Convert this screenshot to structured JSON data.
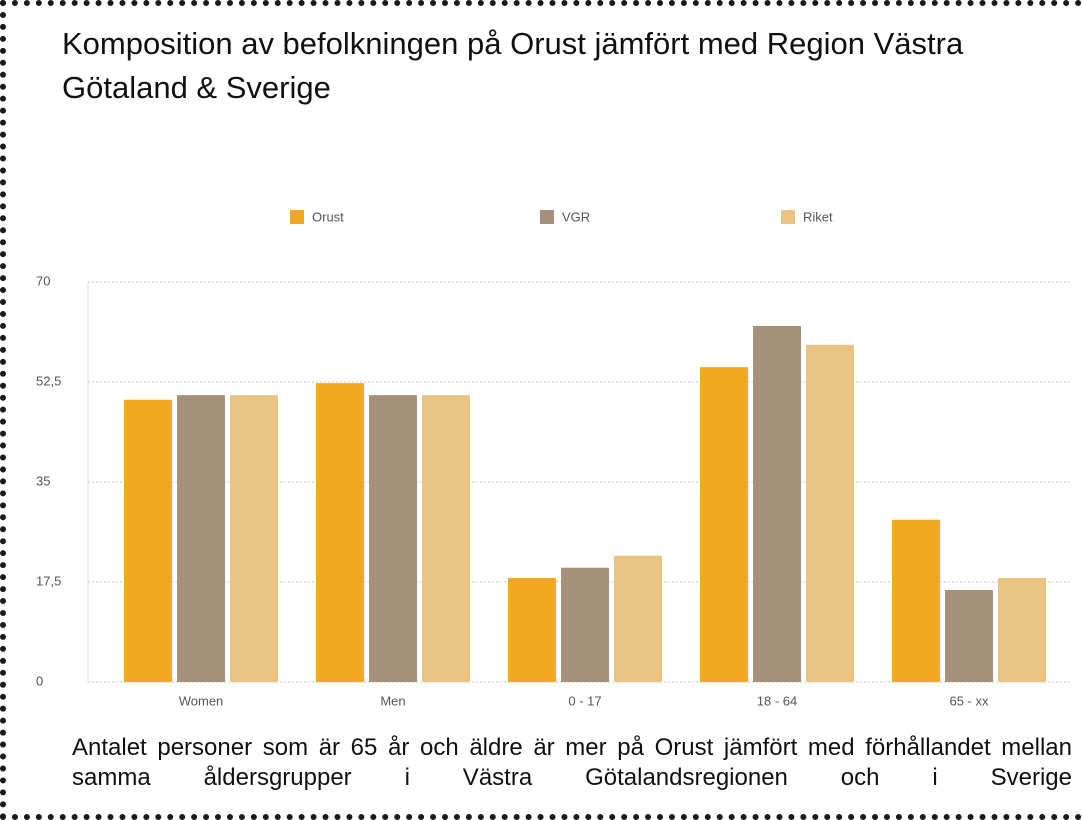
{
  "chart_data": {
    "type": "bar",
    "title": "Komposition av befolkningen på Orust jämfört med Region Västra Götaland & Sverige",
    "categories": [
      "Women",
      "Men",
      "0 - 17",
      "18 - 64",
      "65 - xx"
    ],
    "series": [
      {
        "name": "Orust",
        "color": "#f0a820",
        "values": [
          49.4,
          52.3,
          18.2,
          55.1,
          28.4
        ]
      },
      {
        "name": "VGR",
        "color": "#a5917a",
        "values": [
          50.2,
          50.2,
          20.0,
          62.3,
          16.1
        ]
      },
      {
        "name": "Riket",
        "color": "#eac282",
        "values": [
          50.2,
          50.2,
          22.1,
          59.0,
          18.2
        ]
      }
    ],
    "ylim": [
      0,
      70
    ],
    "yticks": [
      0,
      {
        "value": 17.5,
        "label": "17,5"
      },
      35,
      {
        "value": 52.5,
        "label": "52,5"
      },
      70
    ],
    "grid": true,
    "legend": "top",
    "caption": "Antalet personer som är 65 år och äldre är mer på Orust jämfört med förhållandet mellan samma åldersgrupper i Västra Götalandsregionen och i Sverige"
  }
}
